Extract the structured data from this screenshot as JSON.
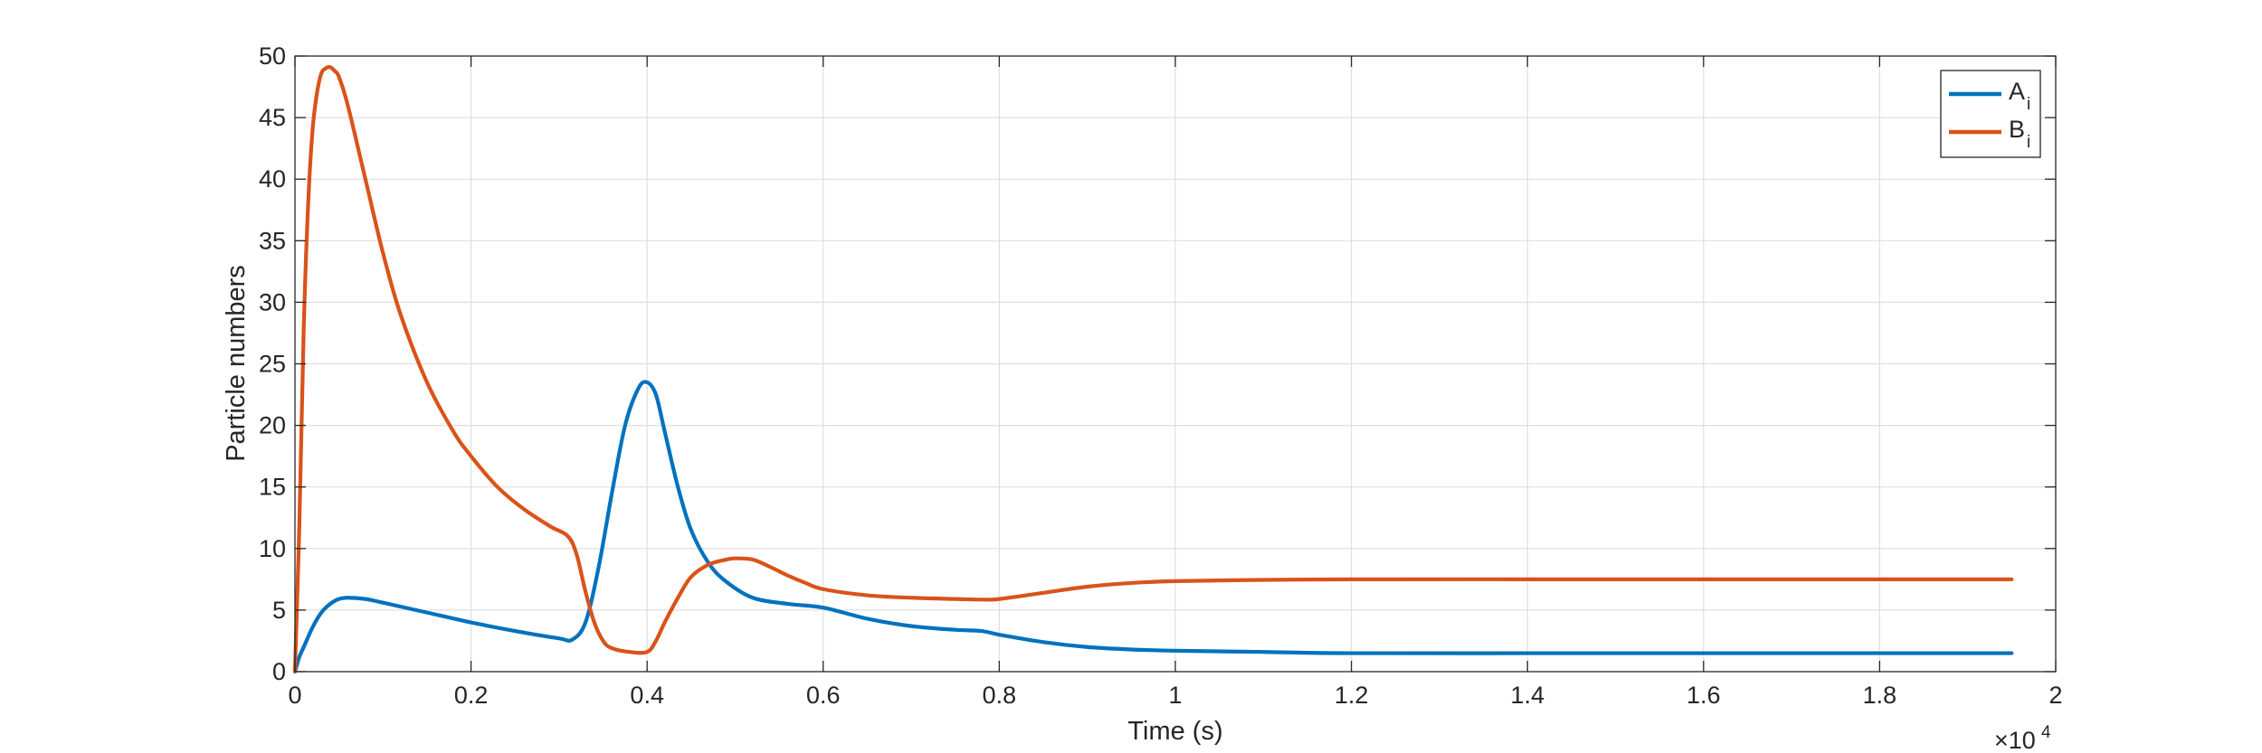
{
  "chart_data": {
    "type": "line",
    "xlabel": "Time (s)",
    "ylabel": "Particle numbers",
    "xlim": [
      0,
      20000
    ],
    "ylim": [
      0,
      50
    ],
    "x_exponent_label": "×10",
    "x_exponent_power": "4",
    "xticks": [
      0,
      2000,
      4000,
      6000,
      8000,
      10000,
      12000,
      14000,
      16000,
      18000,
      20000
    ],
    "xtick_labels": [
      "0",
      "0.2",
      "0.4",
      "0.6",
      "0.8",
      "1",
      "1.2",
      "1.4",
      "1.6",
      "1.8",
      "2"
    ],
    "yticks": [
      0,
      5,
      10,
      15,
      20,
      25,
      30,
      35,
      40,
      45,
      50
    ],
    "ytick_labels": [
      "0",
      "5",
      "10",
      "15",
      "20",
      "25",
      "30",
      "35",
      "40",
      "45",
      "50"
    ],
    "grid": true,
    "legend_position": "top-right",
    "series": [
      {
        "name": "A",
        "name_subscript": "i",
        "color": "#0072BD",
        "x": [
          0,
          50,
          100,
          200,
          300,
          400,
          500,
          600,
          800,
          1000,
          1500,
          2000,
          2500,
          3000,
          3150,
          3300,
          3450,
          3600,
          3750,
          3900,
          4000,
          4100,
          4200,
          4350,
          4500,
          4700,
          4900,
          5200,
          5600,
          6000,
          6500,
          7000,
          7500,
          7800,
          8000,
          8500,
          9000,
          9500,
          10000,
          11000,
          12000,
          14000,
          16000,
          18000,
          19500
        ],
        "y": [
          0,
          1.2,
          2.0,
          3.6,
          4.8,
          5.5,
          5.9,
          6.0,
          5.9,
          5.6,
          4.8,
          4.0,
          3.3,
          2.7,
          2.6,
          4.0,
          8.5,
          14.5,
          20.0,
          23.0,
          23.5,
          22.5,
          19.5,
          15.0,
          11.5,
          8.8,
          7.3,
          6.0,
          5.5,
          5.2,
          4.3,
          3.7,
          3.4,
          3.3,
          3.0,
          2.4,
          2.0,
          1.8,
          1.7,
          1.6,
          1.5,
          1.5,
          1.5,
          1.5,
          1.5
        ]
      },
      {
        "name": "B",
        "name_subscript": "i",
        "color": "#D95319",
        "x": [
          0,
          50,
          100,
          150,
          200,
          250,
          300,
          350,
          400,
          450,
          500,
          600,
          800,
          1000,
          1200,
          1500,
          1800,
          2000,
          2300,
          2600,
          2900,
          3100,
          3200,
          3300,
          3400,
          3500,
          3600,
          3800,
          4000,
          4100,
          4200,
          4350,
          4500,
          4700,
          4900,
          5000,
          5200,
          5400,
          5600,
          5800,
          6000,
          6500,
          7000,
          7500,
          7800,
          8000,
          8500,
          9000,
          9500,
          10000,
          11000,
          12000,
          14000,
          16000,
          18000,
          19500
        ],
        "y": [
          0,
          12.0,
          28.0,
          38.0,
          44.0,
          47.0,
          48.6,
          49.0,
          49.1,
          48.8,
          48.3,
          46.0,
          40.0,
          34.0,
          29.0,
          23.5,
          19.5,
          17.5,
          15.0,
          13.2,
          11.8,
          11.0,
          9.5,
          6.5,
          4.0,
          2.5,
          1.9,
          1.6,
          1.6,
          2.5,
          4.0,
          6.0,
          7.7,
          8.7,
          9.1,
          9.2,
          9.1,
          8.5,
          7.8,
          7.2,
          6.7,
          6.2,
          6.0,
          5.9,
          5.85,
          5.9,
          6.4,
          6.9,
          7.2,
          7.35,
          7.45,
          7.5,
          7.5,
          7.5,
          7.5,
          7.5
        ]
      }
    ]
  }
}
